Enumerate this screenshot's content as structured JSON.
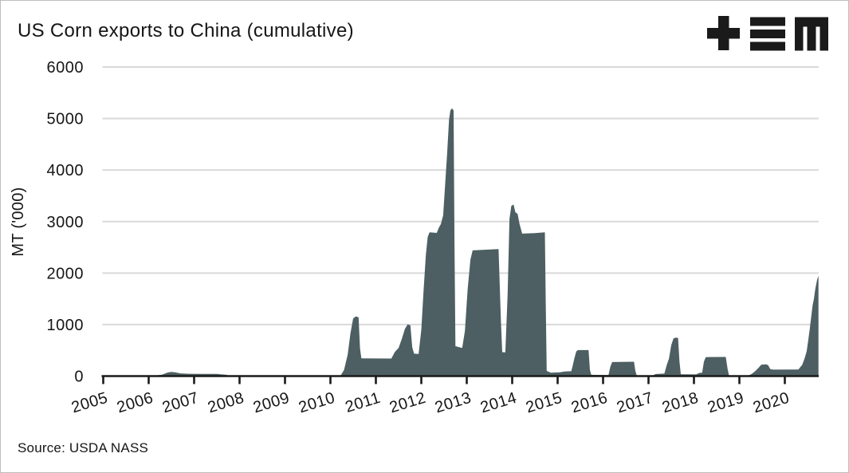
{
  "header": {
    "title": "US Corn exports to China (cumulative)",
    "logo_alt": "plus triple-bar M logo"
  },
  "footer": {
    "source": "Source: USDA NASS"
  },
  "colors": {
    "area_fill": "#4d5f62",
    "gridline": "#d9d9d9",
    "axis": "#1a1a1a",
    "text": "#161616",
    "background": "#ffffff",
    "logo": "#1a1a1a"
  },
  "chart_data": {
    "type": "area",
    "title": "US Corn exports to China (cumulative)",
    "xlabel": "",
    "ylabel": "MT ('000)",
    "unit": "thousand metric tons, cumulative within marketing year",
    "ylim": [
      0,
      6000
    ],
    "xlim": [
      2005,
      2020.75
    ],
    "y_ticks": [
      0,
      1000,
      2000,
      3000,
      4000,
      5000,
      6000
    ],
    "x_ticks": [
      2005,
      2006,
      2007,
      2008,
      2009,
      2010,
      2011,
      2012,
      2013,
      2014,
      2015,
      2016,
      2017,
      2018,
      2019,
      2020
    ],
    "grid": "horizontal",
    "legend_position": "none",
    "fill_color": "#4d5f62",
    "source": "Source: USDA NASS",
    "series": [
      {
        "name": "US corn exports to China (cumulative)",
        "points": [
          [
            2005.0,
            10
          ],
          [
            2006.15,
            12
          ],
          [
            2006.3,
            30
          ],
          [
            2006.42,
            70
          ],
          [
            2006.5,
            82
          ],
          [
            2006.58,
            75
          ],
          [
            2006.7,
            52
          ],
          [
            2006.88,
            45
          ],
          [
            2007.5,
            42
          ],
          [
            2007.6,
            32
          ],
          [
            2007.72,
            25
          ],
          [
            2007.76,
            3
          ],
          [
            2010.22,
            3
          ],
          [
            2010.3,
            120
          ],
          [
            2010.38,
            420
          ],
          [
            2010.44,
            830
          ],
          [
            2010.5,
            1120
          ],
          [
            2010.56,
            1160
          ],
          [
            2010.62,
            1140
          ],
          [
            2010.65,
            540
          ],
          [
            2010.68,
            345
          ],
          [
            2011.34,
            340
          ],
          [
            2011.42,
            470
          ],
          [
            2011.5,
            545
          ],
          [
            2011.57,
            720
          ],
          [
            2011.64,
            920
          ],
          [
            2011.7,
            1005
          ],
          [
            2011.76,
            985
          ],
          [
            2011.8,
            560
          ],
          [
            2011.84,
            435
          ],
          [
            2011.94,
            430
          ],
          [
            2012.0,
            900
          ],
          [
            2012.05,
            1650
          ],
          [
            2012.1,
            2350
          ],
          [
            2012.14,
            2700
          ],
          [
            2012.18,
            2790
          ],
          [
            2012.34,
            2780
          ],
          [
            2012.38,
            2870
          ],
          [
            2012.43,
            2950
          ],
          [
            2012.48,
            3120
          ],
          [
            2012.52,
            3650
          ],
          [
            2012.57,
            4350
          ],
          [
            2012.61,
            4980
          ],
          [
            2012.64,
            5160
          ],
          [
            2012.68,
            5200
          ],
          [
            2012.71,
            5150
          ],
          [
            2012.73,
            2600
          ],
          [
            2012.75,
            580
          ],
          [
            2012.9,
            545
          ],
          [
            2012.96,
            880
          ],
          [
            2013.02,
            1680
          ],
          [
            2013.08,
            2260
          ],
          [
            2013.13,
            2440
          ],
          [
            2013.7,
            2465
          ],
          [
            2013.75,
            1100
          ],
          [
            2013.78,
            465
          ],
          [
            2013.85,
            460
          ],
          [
            2013.9,
            1600
          ],
          [
            2013.94,
            3050
          ],
          [
            2013.98,
            3305
          ],
          [
            2014.03,
            3330
          ],
          [
            2014.07,
            3180
          ],
          [
            2014.12,
            3150
          ],
          [
            2014.16,
            2960
          ],
          [
            2014.22,
            2765
          ],
          [
            2014.5,
            2775
          ],
          [
            2014.72,
            2790
          ],
          [
            2014.74,
            1300
          ],
          [
            2014.76,
            100
          ],
          [
            2014.85,
            65
          ],
          [
            2015.05,
            75
          ],
          [
            2015.15,
            90
          ],
          [
            2015.3,
            95
          ],
          [
            2015.33,
            195
          ],
          [
            2015.37,
            350
          ],
          [
            2015.41,
            480
          ],
          [
            2015.45,
            505
          ],
          [
            2015.68,
            505
          ],
          [
            2015.71,
            120
          ],
          [
            2015.74,
            25
          ],
          [
            2016.12,
            22
          ],
          [
            2016.16,
            180
          ],
          [
            2016.2,
            272
          ],
          [
            2016.68,
            278
          ],
          [
            2016.71,
            100
          ],
          [
            2016.74,
            15
          ],
          [
            2017.1,
            15
          ],
          [
            2017.16,
            40
          ],
          [
            2017.35,
            48
          ],
          [
            2017.4,
            210
          ],
          [
            2017.45,
            340
          ],
          [
            2017.5,
            600
          ],
          [
            2017.55,
            730
          ],
          [
            2017.6,
            748
          ],
          [
            2017.65,
            740
          ],
          [
            2017.68,
            290
          ],
          [
            2017.71,
            35
          ],
          [
            2018.05,
            32
          ],
          [
            2018.12,
            62
          ],
          [
            2018.18,
            65
          ],
          [
            2018.22,
            280
          ],
          [
            2018.26,
            368
          ],
          [
            2018.7,
            372
          ],
          [
            2018.74,
            140
          ],
          [
            2018.77,
            15
          ],
          [
            2019.05,
            12
          ],
          [
            2019.1,
            2
          ],
          [
            2019.18,
            10
          ],
          [
            2019.26,
            35
          ],
          [
            2019.34,
            90
          ],
          [
            2019.42,
            160
          ],
          [
            2019.48,
            220
          ],
          [
            2019.58,
            228
          ],
          [
            2019.63,
            215
          ],
          [
            2019.68,
            135
          ],
          [
            2019.74,
            125
          ],
          [
            2020.3,
            128
          ],
          [
            2020.34,
            175
          ],
          [
            2020.38,
            215
          ],
          [
            2020.43,
            330
          ],
          [
            2020.48,
            480
          ],
          [
            2020.52,
            720
          ],
          [
            2020.55,
            920
          ],
          [
            2020.58,
            1150
          ],
          [
            2020.61,
            1370
          ],
          [
            2020.64,
            1500
          ],
          [
            2020.67,
            1690
          ],
          [
            2020.71,
            1870
          ],
          [
            2020.74,
            1950
          ]
        ]
      }
    ]
  }
}
